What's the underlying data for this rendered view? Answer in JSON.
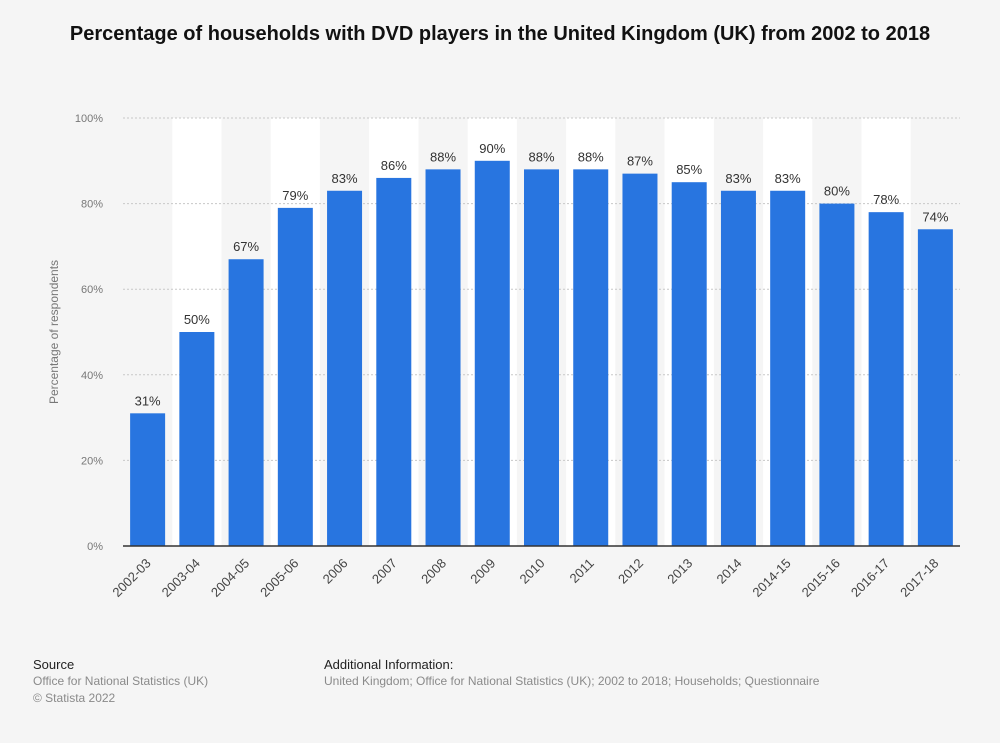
{
  "chart_data": {
    "type": "bar",
    "title": "Percentage of households with DVD players in the United Kingdom (UK) from 2002 to 2018",
    "xlabel": "",
    "ylabel": "Percentage of respondents",
    "ylim": [
      0,
      100
    ],
    "yticks": [
      "0%",
      "20%",
      "40%",
      "60%",
      "80%",
      "100%"
    ],
    "grid": true,
    "categories": [
      "2002-03",
      "2003-04",
      "2004-05",
      "2005-06",
      "2006",
      "2007",
      "2008",
      "2009",
      "2010",
      "2011",
      "2012",
      "2013",
      "2014",
      "2014-15",
      "2015-16",
      "2016-17",
      "2017-18"
    ],
    "values": [
      31,
      50,
      67,
      79,
      83,
      86,
      88,
      90,
      88,
      88,
      87,
      85,
      83,
      83,
      80,
      78,
      74
    ],
    "value_labels": [
      "31%",
      "50%",
      "67%",
      "79%",
      "83%",
      "86%",
      "88%",
      "90%",
      "88%",
      "88%",
      "87%",
      "85%",
      "83%",
      "83%",
      "80%",
      "78%",
      "74%"
    ],
    "bar_color": "#2875e0"
  },
  "footer": {
    "source_heading": "Source",
    "source_lines": [
      "Office for National Statistics (UK)",
      "© Statista 2022"
    ],
    "info_heading": "Additional Information:",
    "info_text": "United Kingdom; Office for National Statistics (UK); 2002 to 2018; Households; Questionnaire"
  }
}
